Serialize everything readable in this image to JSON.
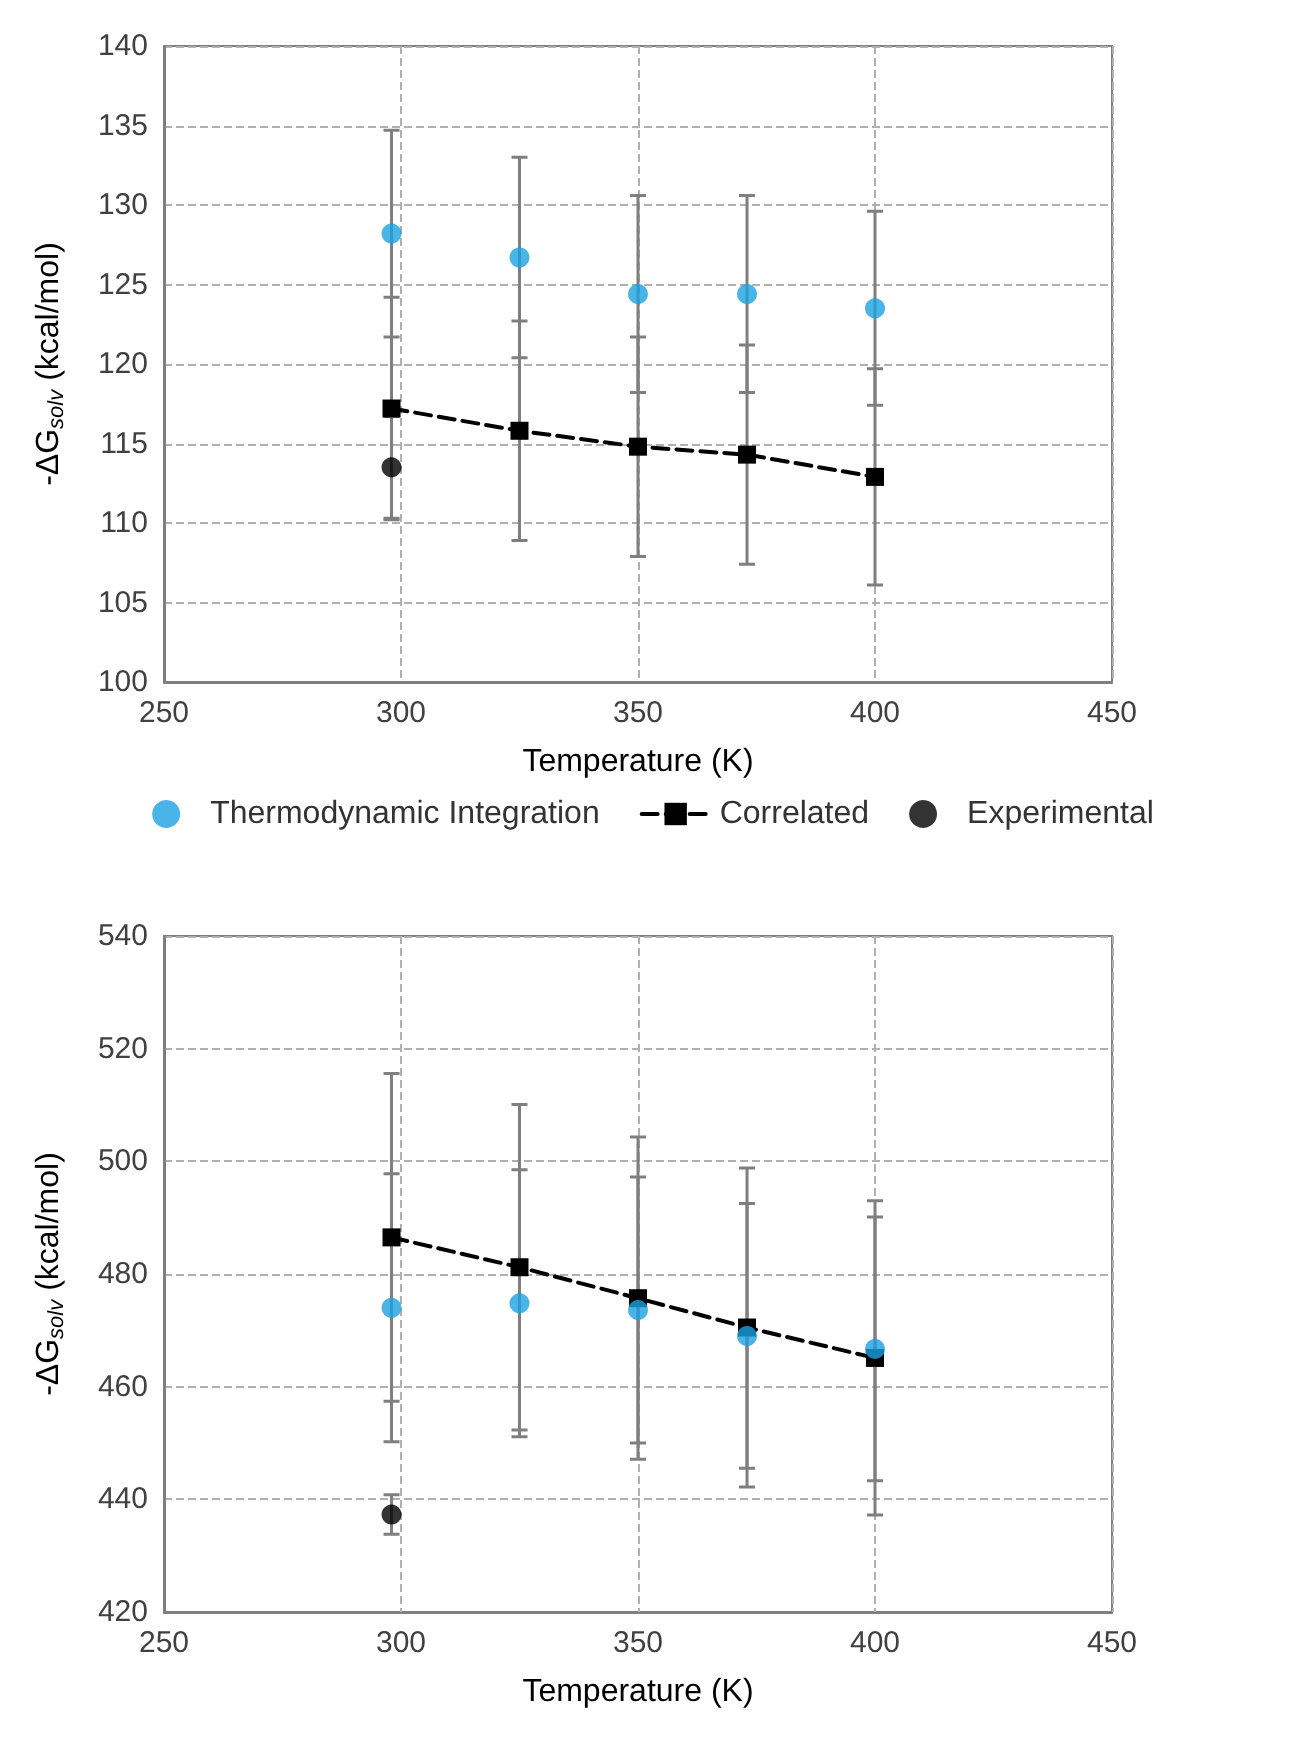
{
  "chart_data": [
    {
      "type": "scatter",
      "xlabel": "Temperature (K)",
      "ylabel": "-ΔG$_{solv}$ (kcal/mol)",
      "xlim": [
        250,
        450
      ],
      "xticks": [
        250,
        300,
        350,
        400,
        450
      ],
      "ylim": [
        100,
        140
      ],
      "yticks": [
        100,
        105,
        110,
        115,
        120,
        125,
        130,
        135,
        140
      ],
      "grid": true,
      "legend": "bottom",
      "series": [
        {
          "name": "Thermodynamic Integration",
          "marker": "circle",
          "color": "#1ba1e2",
          "x": [
            298,
            325,
            350,
            373,
            400
          ],
          "values": [
            128.2,
            126.7,
            124.4,
            124.4,
            123.5
          ],
          "errors": [
            6.5,
            6.3,
            6.2,
            6.2,
            6.1
          ]
        },
        {
          "name": "Correlated",
          "type": "line",
          "marker": "square",
          "line_style": "dashed",
          "color": "#000000",
          "x": [
            298,
            325,
            350,
            373,
            400
          ],
          "values": [
            117.2,
            115.8,
            114.8,
            114.3,
            112.9
          ],
          "errors": [
            7.0,
            6.9,
            6.9,
            6.9,
            6.8
          ]
        },
        {
          "name": "Experimental",
          "marker": "circle",
          "color": "#000000",
          "x": [
            298
          ],
          "values": [
            113.5
          ],
          "errors": [
            3.2
          ]
        }
      ]
    },
    {
      "type": "scatter",
      "xlabel": "Temperature (K)",
      "ylabel": "-ΔG$_{solv}$ (kcal/mol)",
      "xlim": [
        250,
        450
      ],
      "xticks": [
        250,
        300,
        350,
        400,
        450
      ],
      "ylim": [
        420,
        540
      ],
      "yticks": [
        420,
        440,
        460,
        480,
        500,
        520,
        540
      ],
      "grid": true,
      "legend": false,
      "series": [
        {
          "marker": "circle",
          "color": "#1ba1e2",
          "x": [
            298,
            325,
            350,
            373,
            400
          ],
          "values": [
            474.0,
            474.8,
            473.6,
            469.0,
            466.7
          ],
          "errors": [
            23.8,
            23.7,
            23.6,
            23.5,
            23.4
          ]
        },
        {
          "type": "line",
          "marker": "square",
          "line_style": "dashed",
          "color": "#000000",
          "x": [
            298,
            325,
            350,
            373,
            400
          ],
          "values": [
            486.5,
            481.2,
            475.7,
            470.5,
            465.1
          ],
          "errors": [
            29.1,
            28.9,
            28.6,
            28.3,
            27.9
          ]
        },
        {
          "marker": "circle",
          "color": "#000000",
          "x": [
            298
          ],
          "values": [
            437.3
          ],
          "errors": [
            3.5
          ]
        }
      ]
    }
  ]
}
